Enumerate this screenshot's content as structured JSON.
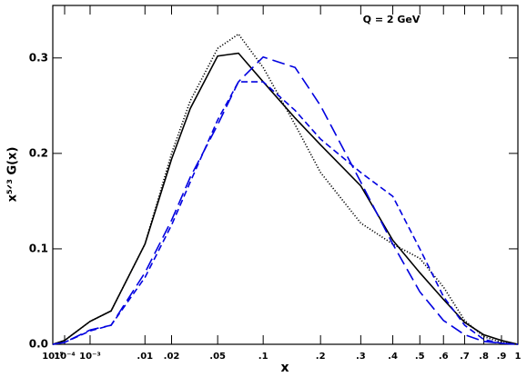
{
  "chart_data": {
    "type": "line",
    "annotation": "Q = 2 GeV",
    "x_label": "x",
    "y_label": "x⁵ᐟ³ G(x)",
    "xscale": "cube-root",
    "xlim": [
      1e-05,
      1
    ],
    "xticks": [
      {
        "value": 1e-05,
        "label": "10⁻⁵"
      },
      {
        "value": 0.0001,
        "label": "10⁻⁴"
      },
      {
        "value": 0.001,
        "label": "10⁻³"
      },
      {
        "value": 0.01,
        "label": ".01"
      },
      {
        "value": 0.02,
        "label": ".02"
      },
      {
        "value": 0.05,
        "label": ".05"
      },
      {
        "value": 0.1,
        "label": ".1"
      },
      {
        "value": 0.2,
        "label": ".2"
      },
      {
        "value": 0.3,
        "label": ".3"
      },
      {
        "value": 0.4,
        "label": ".4"
      },
      {
        "value": 0.5,
        "label": ".5"
      },
      {
        "value": 0.6,
        "label": ".6"
      },
      {
        "value": 0.7,
        "label": ".7"
      },
      {
        "value": 0.8,
        "label": ".8"
      },
      {
        "value": 0.9,
        "label": ".9"
      },
      1
    ],
    "ylim": [
      0,
      0.355
    ],
    "yticks": [
      {
        "value": 0,
        "label": "0.0"
      },
      0.1,
      0.2,
      0.3
    ],
    "x": [
      1e-05,
      0.0001,
      0.001,
      0.003,
      0.01,
      0.02,
      0.03,
      0.05,
      0.07,
      0.1,
      0.15,
      0.2,
      0.3,
      0.4,
      0.5,
      0.6,
      0.7,
      0.8,
      0.9,
      1
    ],
    "series": [
      {
        "color": "#000000",
        "dash": "solid",
        "values": [
          0,
          0.004,
          0.024,
          0.035,
          0.105,
          0.194,
          0.247,
          0.302,
          0.305,
          0.275,
          0.237,
          0.209,
          0.166,
          0.109,
          0.075,
          0.047,
          0.023,
          0.01,
          0.004,
          0
        ]
      },
      {
        "color": "#000000",
        "dash": "dotted",
        "values": [
          0,
          0.004,
          0.024,
          0.035,
          0.105,
          0.2,
          0.255,
          0.31,
          0.325,
          0.29,
          0.23,
          0.18,
          0.127,
          0.105,
          0.09,
          0.06,
          0.025,
          0.008,
          0.002,
          0
        ]
      },
      {
        "color": "#0000e0",
        "dash": "long",
        "values": [
          0,
          0.002,
          0.015,
          0.02,
          0.075,
          0.13,
          0.175,
          0.23,
          0.275,
          0.301,
          0.29,
          0.25,
          0.17,
          0.105,
          0.055,
          0.025,
          0.01,
          0.003,
          0.001,
          0
        ]
      },
      {
        "color": "#0000e0",
        "dash": "short",
        "values": [
          0,
          0.002,
          0.014,
          0.02,
          0.07,
          0.125,
          0.17,
          0.235,
          0.275,
          0.275,
          0.245,
          0.215,
          0.18,
          0.155,
          0.1,
          0.05,
          0.02,
          0.005,
          0.001,
          0
        ]
      }
    ]
  }
}
